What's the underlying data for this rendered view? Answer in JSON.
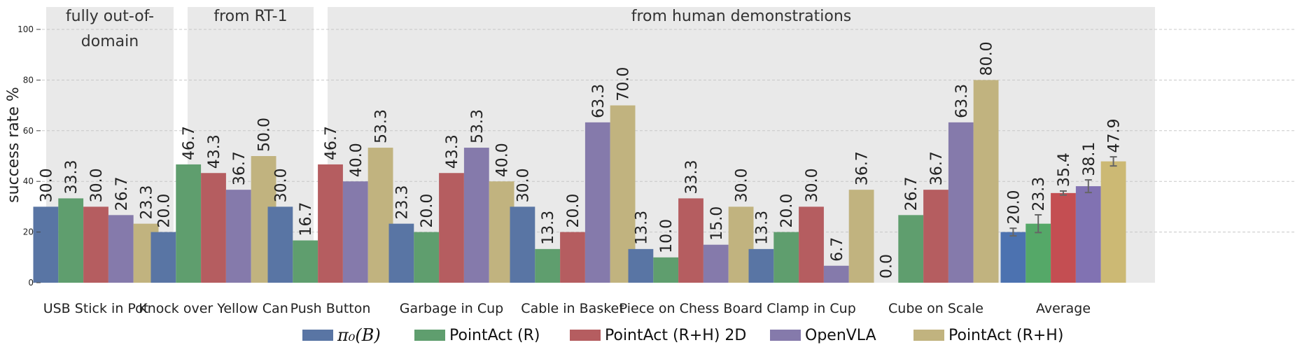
{
  "chart_data": {
    "type": "bar",
    "ylabel": "success rate %",
    "ylim": [
      0,
      105
    ],
    "yticks": [
      0,
      20,
      40,
      60,
      80,
      100
    ],
    "grid": true,
    "legend_position": "bottom",
    "categories": [
      "USB Stick in Pot",
      "Knock over Yellow Can",
      "Push Button",
      "Garbage in Cup",
      "Cable in Basket",
      "Piece on Chess Board",
      "Clamp in Cup",
      "Cube on Scale",
      "Average"
    ],
    "series": [
      {
        "name": "π₀(B)",
        "color": "#5975a4",
        "values": [
          30.0,
          20.0,
          30.0,
          23.3,
          30.0,
          13.3,
          13.3,
          0.0,
          20.0
        ],
        "labels": [
          "30.0",
          "20.0",
          "30.0",
          "23.3",
          "30.0",
          "13.3",
          "13.3",
          "0.0",
          "20.0"
        ]
      },
      {
        "name": "PointAct (R)",
        "color": "#5f9e6e",
        "values": [
          33.3,
          46.7,
          16.7,
          20.0,
          13.3,
          10.0,
          20.0,
          26.7,
          23.3
        ],
        "labels": [
          "33.3",
          "46.7",
          "16.7",
          "20.0",
          "13.3",
          "10.0",
          "20.0",
          "26.7",
          "23.3"
        ]
      },
      {
        "name": "PointAct (R+H) 2D",
        "color": "#b55d60",
        "values": [
          30.0,
          43.3,
          46.7,
          43.3,
          20.0,
          33.3,
          30.0,
          36.7,
          35.4
        ],
        "labels": [
          "30.0",
          "43.3",
          "46.7",
          "43.3",
          "20.0",
          "33.3",
          "30.0",
          "36.7",
          "35.4"
        ]
      },
      {
        "name": "OpenVLA",
        "color": "#857aab",
        "values": [
          26.7,
          36.7,
          40.0,
          53.3,
          63.3,
          15.0,
          6.7,
          63.3,
          38.1
        ],
        "labels": [
          "26.7",
          "36.7",
          "40.0",
          "53.3",
          "63.3",
          "15.0",
          "6.7",
          "63.3",
          "38.1"
        ]
      },
      {
        "name": "PointAct (R+H)",
        "color": "#c1b37f",
        "values": [
          23.3,
          50.0,
          53.3,
          40.0,
          70.0,
          30.0,
          36.7,
          80.0,
          47.9
        ],
        "labels": [
          "23.3",
          "50.0",
          "53.3",
          "40.0",
          "70.0",
          "30.0",
          "36.7",
          "80.0",
          "47.9"
        ]
      }
    ],
    "average_error": [
      1.5,
      3.5,
      0.8,
      2.5,
      1.8
    ],
    "average_bar_colors": [
      "#4c72b0",
      "#55a868",
      "#c44e52",
      "#8172b2",
      "#ccb974"
    ],
    "group_panels": [
      {
        "label_lines": [
          "fully out-of-",
          "domain"
        ],
        "categories": [
          0
        ]
      },
      {
        "label_lines": [
          "from RT-1"
        ],
        "categories": [
          1
        ]
      },
      {
        "label_lines": [
          "from human demonstrations"
        ],
        "categories": [
          2,
          3,
          4,
          5,
          6,
          7
        ]
      }
    ],
    "panel_color": "#e9e9e9"
  }
}
